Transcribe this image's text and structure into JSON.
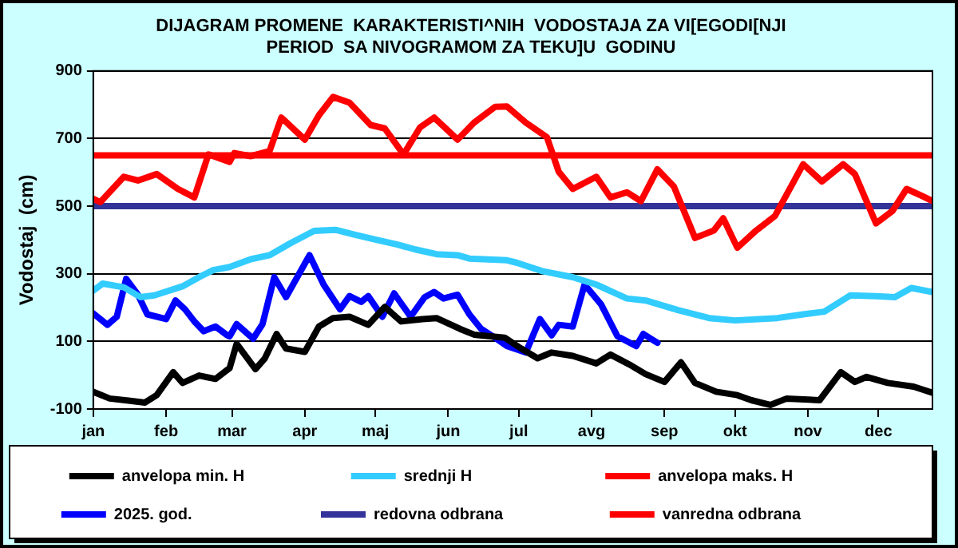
{
  "chart_data": {
    "type": "line",
    "title": "DIJAGRAM PROMENE  KARAKTERISTI^NIH  VODOSTAJA ZA VI[EGODI[NJI PERIOD  SA NIVOGRAMOM ZA TEKU]U  GODINU",
    "ylabel": "Vodostaj  (cm)",
    "xlim": [
      "--01-01",
      "--12-24"
    ],
    "xticks": [
      {
        "value": "--01-01",
        "label": "jan"
      },
      {
        "value": "--02-01",
        "label": "feb"
      },
      {
        "value": "--03-01",
        "label": "mar"
      },
      {
        "value": "--04-01",
        "label": "apr"
      },
      {
        "value": "--05-01",
        "label": "maj"
      },
      {
        "value": "--06-01",
        "label": "jun"
      },
      {
        "value": "--07-01",
        "label": "jul"
      },
      {
        "value": "--08-01",
        "label": "avg"
      },
      {
        "value": "--09-01",
        "label": "sep"
      },
      {
        "value": "--10-01",
        "label": "okt"
      },
      {
        "value": "--11-01",
        "label": "nov"
      },
      {
        "value": "--12-01",
        "label": "dec"
      }
    ],
    "ylim": [
      -100,
      900
    ],
    "yticks": [
      -100,
      100,
      300,
      500,
      700,
      900
    ],
    "grid": "y",
    "legend": "bottom",
    "marker": "none",
    "line_style": "solid",
    "series": [
      {
        "name": "anvelopa min. H",
        "color": "#000000",
        "x": [
          "--01-01",
          "--01-08",
          "--01-16",
          "--01-23",
          "--01-28",
          "--02-04",
          "--02-08",
          "--02-15",
          "--02-22",
          "--02-28",
          "--03-03",
          "--03-11",
          "--03-15",
          "--03-20",
          "--03-24",
          "--04-01",
          "--04-07",
          "--04-13",
          "--04-20",
          "--04-28",
          "--05-05",
          "--05-12",
          "--05-21",
          "--05-27",
          "--06-06",
          "--06-12",
          "--06-25",
          "--07-02",
          "--07-09",
          "--07-15",
          "--07-24",
          "--08-03",
          "--08-09",
          "--08-18",
          "--08-24",
          "--09-01",
          "--09-08",
          "--09-14",
          "--09-23",
          "--10-02",
          "--10-08",
          "--10-16",
          "--10-23",
          "--11-06",
          "--11-15",
          "--11-21",
          "--11-26",
          "--12-05",
          "--12-16",
          "--12-24"
        ],
        "values": [
          -49,
          -69,
          -75,
          -81,
          -59,
          9,
          -23,
          -1,
          -11,
          21,
          93,
          18,
          50,
          122,
          79,
          69,
          144,
          169,
          173,
          149,
          202,
          159,
          166,
          169,
          137,
          120,
          111,
          79,
          50,
          67,
          57,
          35,
          61,
          28,
          3,
          -20,
          38,
          -23,
          -49,
          -59,
          -74,
          -88,
          -69,
          -74,
          9,
          -20,
          -5,
          -23,
          -34,
          -52
        ]
      },
      {
        "name": "srednji H",
        "color": "#33ccff",
        "x": [
          "--01-01",
          "--01-05",
          "--01-14",
          "--01-21",
          "--01-27",
          "--02-08",
          "--02-15",
          "--02-21",
          "--02-28",
          "--03-09",
          "--03-17",
          "--03-26",
          "--04-05",
          "--04-14",
          "--04-22",
          "--05-01",
          "--05-10",
          "--05-18",
          "--05-27",
          "--06-05",
          "--06-10",
          "--06-26",
          "--06-30",
          "--07-11",
          "--07-24",
          "--08-03",
          "--08-16",
          "--08-24",
          "--09-07",
          "--09-20",
          "--10-01",
          "--10-19",
          "--10-30",
          "--11-08",
          "--11-19",
          "--11-30",
          "--12-08",
          "--12-15",
          "--12-24"
        ],
        "values": [
          250,
          271,
          260,
          231,
          236,
          263,
          290,
          311,
          320,
          343,
          355,
          391,
          427,
          430,
          416,
          401,
          387,
          372,
          358,
          355,
          345,
          340,
          333,
          308,
          290,
          268,
          227,
          221,
          192,
          169,
          162,
          169,
          180,
          188,
          236,
          234,
          231,
          258,
          246
        ]
      },
      {
        "name": "anvelopa maks. H",
        "color": "#ff0000",
        "x": [
          "--01-01",
          "--01-04",
          "--01-14",
          "--01-20",
          "--01-28",
          "--02-06",
          "--02-13",
          "--02-19",
          "--02-28",
          "--03-02",
          "--03-09",
          "--03-17",
          "--03-22",
          "--04-01",
          "--04-07",
          "--04-13",
          "--04-20",
          "--04-29",
          "--05-05",
          "--05-13",
          "--05-20",
          "--05-26",
          "--06-05",
          "--06-12",
          "--06-21",
          "--06-26",
          "--07-04",
          "--07-13",
          "--07-18",
          "--07-24",
          "--08-03",
          "--08-09",
          "--08-16",
          "--08-22",
          "--08-29",
          "--09-05",
          "--09-14",
          "--09-22",
          "--09-26",
          "--10-02",
          "--10-10",
          "--10-18",
          "--10-30",
          "--11-07",
          "--11-16",
          "--11-21",
          "--11-30",
          "--12-07",
          "--12-13",
          "--12-20",
          "--12-24"
        ],
        "values": [
          522,
          512,
          587,
          576,
          595,
          551,
          526,
          653,
          631,
          657,
          648,
          663,
          762,
          697,
          769,
          823,
          806,
          740,
          730,
          653,
          733,
          762,
          697,
          747,
          794,
          795,
          747,
          704,
          602,
          551,
          587,
          526,
          541,
          515,
          609,
          558,
          406,
          428,
          464,
          377,
          428,
          471,
          624,
          573,
          624,
          595,
          449,
          486,
          551,
          529,
          515
        ]
      },
      {
        "name": "2025. god.",
        "color": "#0000ff",
        "x": [
          "--01-01",
          "--01-07",
          "--01-11",
          "--01-15",
          "--01-20",
          "--01-24",
          "--02-01",
          "--02-05",
          "--02-09",
          "--02-13",
          "--02-17",
          "--02-22",
          "--02-27",
          "--02-28",
          "--03-03",
          "--03-10",
          "--03-14",
          "--03-19",
          "--03-24",
          "--04-03",
          "--04-09",
          "--04-16",
          "--04-20",
          "--04-25",
          "--04-28",
          "--05-04",
          "--05-09",
          "--05-16",
          "--05-22",
          "--05-26",
          "--05-30",
          "--06-05",
          "--06-10",
          "--06-15",
          "--06-20",
          "--06-26",
          "--07-04",
          "--07-10",
          "--07-15",
          "--07-18",
          "--07-24",
          "--07-29",
          "--08-05",
          "--08-12",
          "--08-20",
          "--08-23",
          "--08-29"
        ],
        "values": [
          183,
          149,
          173,
          285,
          238,
          180,
          166,
          221,
          195,
          159,
          130,
          144,
          118,
          115,
          151,
          108,
          151,
          290,
          231,
          355,
          268,
          195,
          234,
          217,
          234,
          173,
          242,
          173,
          231,
          246,
          227,
          238,
          180,
          137,
          115,
          86,
          67,
          166,
          118,
          149,
          144,
          268,
          210,
          115,
          86,
          122,
          96
        ]
      },
      {
        "name": "redovna odbrana",
        "color": "#333399",
        "x": [
          "--01-01",
          "--12-24"
        ],
        "values": [
          500,
          500
        ]
      },
      {
        "name": "vanredna odbrana",
        "color": "#ff0000",
        "x": [
          "--01-01",
          "--12-24"
        ],
        "values": [
          650,
          650
        ]
      }
    ]
  }
}
